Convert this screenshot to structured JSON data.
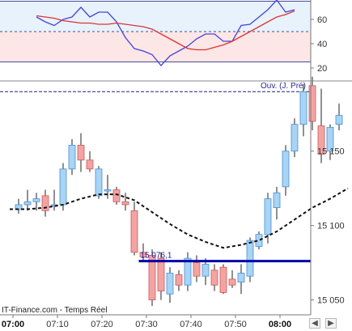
{
  "chart_data": [
    {
      "type": "line",
      "panel": "oscillator",
      "y_ticks": [
        "60",
        "40",
        "20"
      ],
      "ylim": [
        12,
        76
      ],
      "grid": false,
      "reference_levels": [
        75,
        50,
        25
      ],
      "zone_upper_color": "#e8f2fd",
      "zone_lower_color": "#fce6e6",
      "x": [
        6,
        8,
        10,
        12,
        14,
        16,
        18,
        20,
        22,
        24,
        26,
        28,
        30,
        32,
        34,
        36,
        38,
        40,
        42,
        44,
        46,
        48,
        50,
        52,
        54,
        56,
        58,
        60,
        62,
        64
      ],
      "series": [
        {
          "color": "#4444dd",
          "values": [
            62,
            58,
            55,
            60,
            62,
            70,
            62,
            66,
            66,
            58,
            45,
            36,
            34,
            31,
            22,
            30,
            34,
            38,
            44,
            48,
            48,
            42,
            42,
            55,
            56,
            62,
            68,
            76,
            66,
            68
          ]
        },
        {
          "color": "#dd3333",
          "values": [
            63,
            62,
            61,
            59,
            58,
            57,
            57,
            56,
            56,
            57,
            56,
            55,
            54,
            52,
            48,
            44,
            40,
            36,
            35,
            35,
            37,
            39,
            42,
            46,
            50,
            54,
            58,
            62,
            64,
            67
          ]
        }
      ]
    },
    {
      "type": "candlestick",
      "panel": "price",
      "y_ticks": [
        "15 150",
        "15 100",
        "15 050"
      ],
      "ylim": [
        15040,
        15195
      ],
      "x_ticks": [
        {
          "t": 0,
          "label": "07:00",
          "bold": true
        },
        {
          "t": 10,
          "label": "07:10",
          "bold": false
        },
        {
          "t": 20,
          "label": "07:20",
          "bold": false
        },
        {
          "t": 30,
          "label": "07:30",
          "bold": false
        },
        {
          "t": 40,
          "label": "07:40",
          "bold": false
        },
        {
          "t": 50,
          "label": "07:50",
          "bold": false
        },
        {
          "t": 60,
          "label": "08:00",
          "bold": true
        }
      ],
      "bull_color": "#a8d4f5",
      "bear_color": "#f4a3a3",
      "candles": [
        {
          "t": 2,
          "o": 15111,
          "h": 15118,
          "l": 15108,
          "c": 15114
        },
        {
          "t": 4,
          "o": 15114,
          "h": 15124,
          "l": 15110,
          "c": 15116
        },
        {
          "t": 6,
          "o": 15116,
          "h": 15122,
          "l": 15110,
          "c": 15118
        },
        {
          "t": 8,
          "o": 15120,
          "h": 15124,
          "l": 15106,
          "c": 15110
        },
        {
          "t": 10,
          "o": 15114,
          "h": 15124,
          "l": 15110,
          "c": 15114
        },
        {
          "t": 12,
          "o": 15114,
          "h": 15142,
          "l": 15110,
          "c": 15138
        },
        {
          "t": 14,
          "o": 15138,
          "h": 15158,
          "l": 15134,
          "c": 15154
        },
        {
          "t": 16,
          "o": 15154,
          "h": 15162,
          "l": 15136,
          "c": 15144
        },
        {
          "t": 18,
          "o": 15144,
          "h": 15150,
          "l": 15136,
          "c": 15138
        },
        {
          "t": 20,
          "o": 15120,
          "h": 15140,
          "l": 15118,
          "c": 15138
        },
        {
          "t": 22,
          "o": 15124,
          "h": 15134,
          "l": 15118,
          "c": 15124
        },
        {
          "t": 24,
          "o": 15124,
          "h": 15126,
          "l": 15114,
          "c": 15116
        },
        {
          "t": 26,
          "o": 15116,
          "h": 15122,
          "l": 15110,
          "c": 15114
        },
        {
          "t": 28,
          "o": 15110,
          "h": 15116,
          "l": 15080,
          "c": 15082
        },
        {
          "t": 30,
          "o": 15082,
          "h": 15088,
          "l": 15076,
          "c": 15079
        },
        {
          "t": 32,
          "o": 15080,
          "h": 15084,
          "l": 15046,
          "c": 15050
        },
        {
          "t": 34,
          "o": 15078,
          "h": 15082,
          "l": 15050,
          "c": 15056
        },
        {
          "t": 36,
          "o": 15054,
          "h": 15072,
          "l": 15048,
          "c": 15068
        },
        {
          "t": 38,
          "o": 15067,
          "h": 15070,
          "l": 15056,
          "c": 15060
        },
        {
          "t": 40,
          "o": 15060,
          "h": 15082,
          "l": 15056,
          "c": 15078
        },
        {
          "t": 42,
          "o": 15075,
          "h": 15080,
          "l": 15062,
          "c": 15066
        },
        {
          "t": 44,
          "o": 15066,
          "h": 15078,
          "l": 15060,
          "c": 15074
        },
        {
          "t": 46,
          "o": 15070,
          "h": 15074,
          "l": 15056,
          "c": 15060
        },
        {
          "t": 48,
          "o": 15072,
          "h": 15074,
          "l": 15054,
          "c": 15055
        },
        {
          "t": 50,
          "o": 15064,
          "h": 15070,
          "l": 15058,
          "c": 15060
        },
        {
          "t": 52,
          "o": 15062,
          "h": 15074,
          "l": 15054,
          "c": 15068
        },
        {
          "t": 54,
          "o": 15066,
          "h": 15092,
          "l": 15062,
          "c": 15090
        },
        {
          "t": 56,
          "o": 15086,
          "h": 15096,
          "l": 15084,
          "c": 15094
        },
        {
          "t": 58,
          "o": 15094,
          "h": 15122,
          "l": 15088,
          "c": 15118
        },
        {
          "t": 60,
          "o": 15112,
          "h": 15126,
          "l": 15104,
          "c": 15122
        },
        {
          "t": 62,
          "o": 15126,
          "h": 15154,
          "l": 15120,
          "c": 15150
        },
        {
          "t": 64,
          "o": 15150,
          "h": 15172,
          "l": 15146,
          "c": 15168
        },
        {
          "t": 66,
          "o": 15168,
          "h": 15195,
          "l": 15160,
          "c": 15190
        },
        {
          "t": 68,
          "o": 15194,
          "h": 15200,
          "l": 15164,
          "c": 15170
        },
        {
          "t": 70,
          "o": 15167,
          "h": 15192,
          "l": 15142,
          "c": 15148
        },
        {
          "t": 72,
          "o": 15150,
          "h": 15168,
          "l": 15144,
          "c": 15166
        },
        {
          "t": 74,
          "o": 15168,
          "h": 15182,
          "l": 15164,
          "c": 15174
        }
      ],
      "moving_average": {
        "color": "#111111",
        "style": "dashed",
        "t": [
          0,
          4,
          8,
          12,
          16,
          20,
          24,
          28,
          32,
          36,
          40,
          44,
          48,
          52,
          56,
          60,
          64,
          68,
          72,
          76
        ],
        "values": [
          15111,
          15111,
          15112,
          15114,
          15118,
          15121,
          15121,
          15117,
          15109,
          15101,
          15094,
          15089,
          15085,
          15087,
          15090,
          15096,
          15104,
          15112,
          15118,
          15125
        ]
      },
      "horizontal_lines": [
        {
          "name": "open_previous_day",
          "value": 15190,
          "label": "Ouv. (J. Pré)",
          "color": "#1a1a8c",
          "style": "dashed"
        },
        {
          "name": "level_line",
          "value": 15076.1,
          "label": "15 076,1",
          "color": "#0000aa",
          "style": "solid"
        }
      ],
      "source_text": "IT-Finance.com - Temps Réel"
    }
  ]
}
